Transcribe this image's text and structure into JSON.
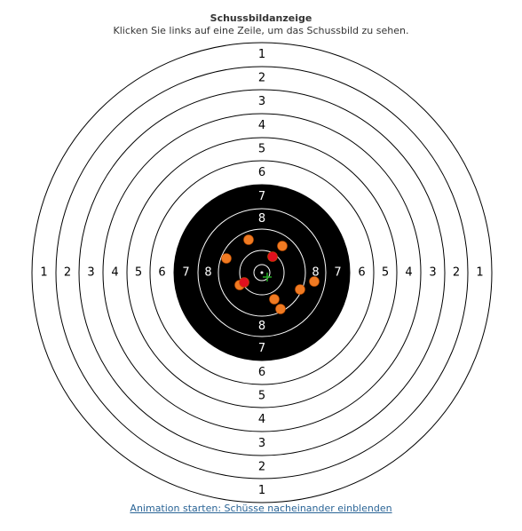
{
  "header": {
    "title": "Schussbildanzeige",
    "subtitle": "Klicken Sie links auf eine Zeile, um das Schussbild zu sehen."
  },
  "target": {
    "ring_values": [
      1,
      2,
      3,
      4,
      5,
      6,
      7,
      8
    ],
    "labels": {
      "1": "1",
      "2": "2",
      "3": "3",
      "4": "4",
      "5": "5",
      "6": "6",
      "7": "7",
      "8": "8"
    },
    "colors": {
      "paper": "#ffffff",
      "black_zone": "#000000",
      "ring_line_outer": "#000000",
      "ring_line_inner": "#ffffff",
      "shot_fill": "#f07a22",
      "shot_fill_recent": "#e0101e",
      "shot_stroke": "#c04f00",
      "center_cross": "#22aa22"
    }
  },
  "footer": {
    "animation_link": "Animation starten: Schüsse nacheinander einblenden"
  }
}
